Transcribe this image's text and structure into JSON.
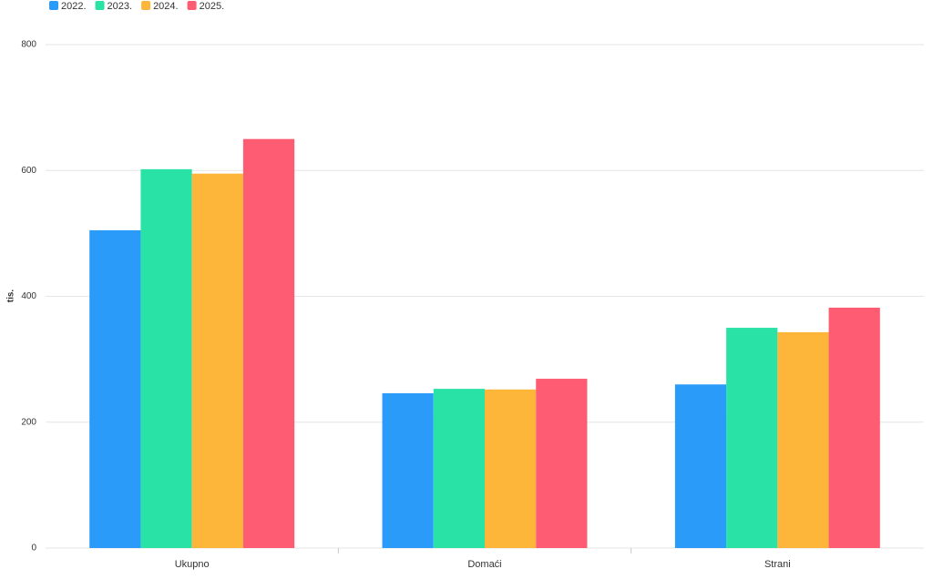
{
  "chart_data": {
    "type": "bar",
    "y_label": "tis.",
    "categories": [
      "Ukupno",
      "Domaći",
      "Strani"
    ],
    "series": [
      {
        "name": "2022.",
        "color": "#2a9bf8",
        "values": [
          505,
          246,
          260
        ]
      },
      {
        "name": "2023.",
        "color": "#29e3a6",
        "values": [
          602,
          253,
          350
        ]
      },
      {
        "name": "2024.",
        "color": "#fdb53a",
        "values": [
          595,
          252,
          343
        ]
      },
      {
        "name": "2025.",
        "color": "#fe5c72",
        "values": [
          650,
          269,
          382
        ]
      }
    ],
    "ylim": [
      0,
      800
    ],
    "yticks": [
      0,
      200,
      400,
      600,
      800
    ],
    "grid": true,
    "legend": "top-left"
  }
}
